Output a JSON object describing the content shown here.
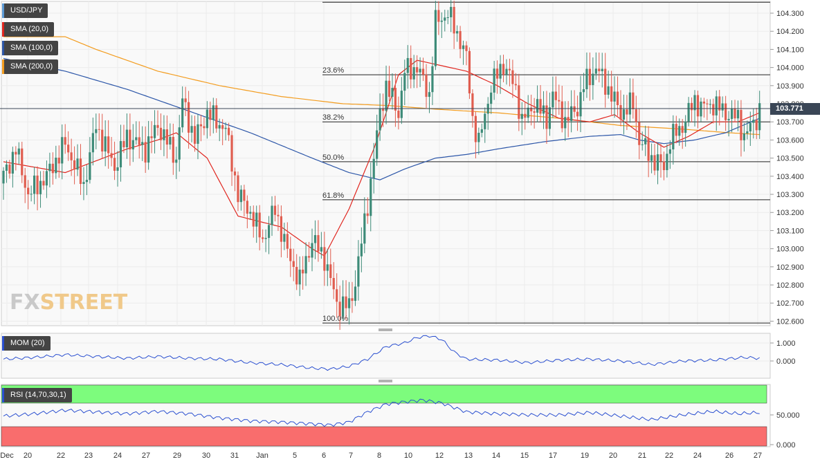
{
  "symbol": "USD/JPY",
  "current_price_label": "103.771",
  "watermark": {
    "part1": "FX",
    "part2": "STREET"
  },
  "colors": {
    "up": "#3d8b78",
    "down": "#e05d4f",
    "sma20": "#e0251e",
    "sma100": "#2c56a8",
    "sma200": "#f39c1e",
    "mom": "#2a4fd0",
    "rsi": "#2a4fd0",
    "rsi_over": "#7dfc7d",
    "rsi_under": "#f96d6d"
  },
  "legends": [
    {
      "label": "USD/JPY",
      "color": "#5b9ad6"
    },
    {
      "label": "SMA (20,0)",
      "color": "#e0251e"
    },
    {
      "label": "SMA (100,0)",
      "color": "#2c56a8"
    },
    {
      "label": "SMA (200,0)",
      "color": "#f39c1e"
    }
  ],
  "indicators": {
    "mom": {
      "label": "MOM (20)",
      "ticks": [
        "1.000",
        "0.000"
      ]
    },
    "rsi": {
      "label": "RSI (14,70,30,1)",
      "ticks": [
        "50.000",
        "0.000"
      ]
    }
  },
  "chart_data": {
    "type": "candlestick",
    "x_ticks": [
      "Dec",
      "20",
      "22",
      "23",
      "24",
      "27",
      "29",
      "30",
      "31",
      "Jan",
      "5",
      "6",
      "7",
      "8",
      "10",
      "12",
      "13",
      "14",
      "15",
      "17",
      "19",
      "20",
      "21",
      "22",
      "24",
      "26",
      "27"
    ],
    "y_ticks": [
      "104.300",
      "104.200",
      "104.100",
      "104.000",
      "103.900",
      "103.800",
      "103.700",
      "103.600",
      "103.500",
      "103.400",
      "103.300",
      "103.200",
      "103.100",
      "103.000",
      "102.900",
      "102.800",
      "102.700",
      "102.600"
    ],
    "ylim": [
      102.575,
      104.365
    ],
    "fibonacci": [
      {
        "label": "",
        "value": 104.36
      },
      {
        "label": "23.6%",
        "value": 103.96
      },
      {
        "label": "38.2%",
        "value": 103.7
      },
      {
        "label": "50.0%",
        "value": 103.48
      },
      {
        "label": "61.8%",
        "value": 103.27
      },
      {
        "label": "100.0%",
        "value": 102.59
      }
    ],
    "current_price": 103.771,
    "close_keys": [
      [
        0,
        103.4
      ],
      [
        4,
        103.55
      ],
      [
        8,
        103.3
      ],
      [
        14,
        103.4
      ],
      [
        20,
        103.58
      ],
      [
        26,
        103.35
      ],
      [
        30,
        103.68
      ],
      [
        36,
        103.45
      ],
      [
        40,
        103.62
      ],
      [
        46,
        103.55
      ],
      [
        50,
        103.68
      ],
      [
        56,
        103.5
      ],
      [
        58,
        103.82
      ],
      [
        62,
        103.6
      ],
      [
        66,
        103.75
      ],
      [
        72,
        103.66
      ],
      [
        76,
        103.3
      ],
      [
        80,
        103.2
      ],
      [
        84,
        103.05
      ],
      [
        88,
        103.22
      ],
      [
        92,
        102.98
      ],
      [
        96,
        102.82
      ],
      [
        100,
        103.05
      ],
      [
        104,
        102.95
      ],
      [
        108,
        102.7
      ],
      [
        112,
        102.68
      ],
      [
        114,
        102.82
      ],
      [
        118,
        103.25
      ],
      [
        122,
        103.75
      ],
      [
        124,
        103.9
      ],
      [
        128,
        103.75
      ],
      [
        130,
        103.98
      ],
      [
        134,
        104.0
      ],
      [
        138,
        103.85
      ],
      [
        140,
        104.25
      ],
      [
        144,
        104.3
      ],
      [
        148,
        104.15
      ],
      [
        150,
        104.05
      ],
      [
        152,
        103.72
      ],
      [
        154,
        103.58
      ],
      [
        158,
        103.9
      ],
      [
        162,
        104.02
      ],
      [
        166,
        103.88
      ],
      [
        168,
        103.7
      ],
      [
        172,
        103.8
      ],
      [
        176,
        103.72
      ],
      [
        178,
        103.85
      ],
      [
        182,
        103.7
      ],
      [
        186,
        103.78
      ],
      [
        188,
        103.9
      ],
      [
        192,
        104.0
      ],
      [
        196,
        103.88
      ],
      [
        200,
        103.75
      ],
      [
        204,
        103.8
      ],
      [
        206,
        103.6
      ],
      [
        210,
        103.5
      ],
      [
        214,
        103.45
      ],
      [
        216,
        103.6
      ],
      [
        220,
        103.68
      ],
      [
        224,
        103.82
      ],
      [
        226,
        103.78
      ],
      [
        230,
        103.8
      ],
      [
        234,
        103.75
      ],
      [
        238,
        103.72
      ],
      [
        240,
        103.62
      ],
      [
        244,
        103.72
      ],
      [
        245,
        103.77
      ]
    ],
    "sma20_keys": [
      [
        0,
        103.48
      ],
      [
        20,
        103.42
      ],
      [
        40,
        103.55
      ],
      [
        50,
        103.6
      ],
      [
        56,
        103.64
      ],
      [
        66,
        103.5
      ],
      [
        76,
        103.18
      ],
      [
        90,
        103.12
      ],
      [
        100,
        103.0
      ],
      [
        104,
        102.96
      ],
      [
        112,
        103.22
      ],
      [
        120,
        103.55
      ],
      [
        124,
        103.75
      ],
      [
        128,
        103.96
      ],
      [
        134,
        104.04
      ],
      [
        150,
        103.98
      ],
      [
        160,
        103.9
      ],
      [
        170,
        103.8
      ],
      [
        180,
        103.72
      ],
      [
        190,
        103.7
      ],
      [
        198,
        103.74
      ],
      [
        206,
        103.64
      ],
      [
        214,
        103.56
      ],
      [
        222,
        103.62
      ],
      [
        230,
        103.7
      ],
      [
        238,
        103.7
      ],
      [
        245,
        103.75
      ]
    ],
    "sma100_keys": [
      [
        0,
        104.05
      ],
      [
        20,
        103.98
      ],
      [
        40,
        103.88
      ],
      [
        60,
        103.76
      ],
      [
        80,
        103.64
      ],
      [
        100,
        103.5
      ],
      [
        112,
        103.42
      ],
      [
        122,
        103.38
      ],
      [
        130,
        103.44
      ],
      [
        140,
        103.5
      ],
      [
        150,
        103.52
      ],
      [
        160,
        103.55
      ],
      [
        175,
        103.59
      ],
      [
        190,
        103.62
      ],
      [
        200,
        103.63
      ],
      [
        206,
        103.6
      ],
      [
        214,
        103.58
      ],
      [
        224,
        103.6
      ],
      [
        234,
        103.64
      ],
      [
        245,
        103.72
      ]
    ],
    "sma200_keys": [
      [
        0,
        104.17
      ],
      [
        10,
        104.17
      ],
      [
        20,
        104.17
      ],
      [
        30,
        104.1
      ],
      [
        50,
        103.98
      ],
      [
        70,
        103.9
      ],
      [
        90,
        103.84
      ],
      [
        110,
        103.8
      ],
      [
        125,
        103.79
      ],
      [
        140,
        103.77
      ],
      [
        160,
        103.75
      ],
      [
        180,
        103.72
      ],
      [
        200,
        103.68
      ],
      [
        220,
        103.66
      ],
      [
        235,
        103.64
      ],
      [
        245,
        103.63
      ]
    ],
    "mom_keys": [
      [
        0,
        0.1
      ],
      [
        10,
        0.2
      ],
      [
        20,
        0.35
      ],
      [
        30,
        0.25
      ],
      [
        40,
        0.15
      ],
      [
        50,
        0.25
      ],
      [
        60,
        0.15
      ],
      [
        70,
        0.1
      ],
      [
        80,
        -0.1
      ],
      [
        90,
        -0.2
      ],
      [
        100,
        -0.4
      ],
      [
        106,
        -0.45
      ],
      [
        112,
        -0.3
      ],
      [
        118,
        0.1
      ],
      [
        124,
        0.8
      ],
      [
        130,
        1.0
      ],
      [
        134,
        1.3
      ],
      [
        138,
        1.4
      ],
      [
        142,
        1.2
      ],
      [
        146,
        0.5
      ],
      [
        150,
        0.1
      ],
      [
        160,
        0.05
      ],
      [
        170,
        -0.1
      ],
      [
        180,
        0.05
      ],
      [
        190,
        0.1
      ],
      [
        200,
        0.0
      ],
      [
        210,
        -0.2
      ],
      [
        220,
        0.0
      ],
      [
        230,
        0.05
      ],
      [
        240,
        0.2
      ],
      [
        245,
        0.15
      ]
    ],
    "rsi_keys": [
      [
        0,
        48
      ],
      [
        10,
        52
      ],
      [
        20,
        58
      ],
      [
        30,
        55
      ],
      [
        40,
        52
      ],
      [
        50,
        56
      ],
      [
        60,
        52
      ],
      [
        70,
        45
      ],
      [
        80,
        40
      ],
      [
        90,
        38
      ],
      [
        100,
        35
      ],
      [
        106,
        33
      ],
      [
        112,
        38
      ],
      [
        118,
        55
      ],
      [
        124,
        68
      ],
      [
        130,
        72
      ],
      [
        136,
        75
      ],
      [
        142,
        70
      ],
      [
        150,
        55
      ],
      [
        160,
        52
      ],
      [
        170,
        50
      ],
      [
        180,
        50
      ],
      [
        190,
        54
      ],
      [
        200,
        48
      ],
      [
        210,
        42
      ],
      [
        220,
        50
      ],
      [
        230,
        56
      ],
      [
        238,
        52
      ],
      [
        245,
        54
      ]
    ]
  }
}
